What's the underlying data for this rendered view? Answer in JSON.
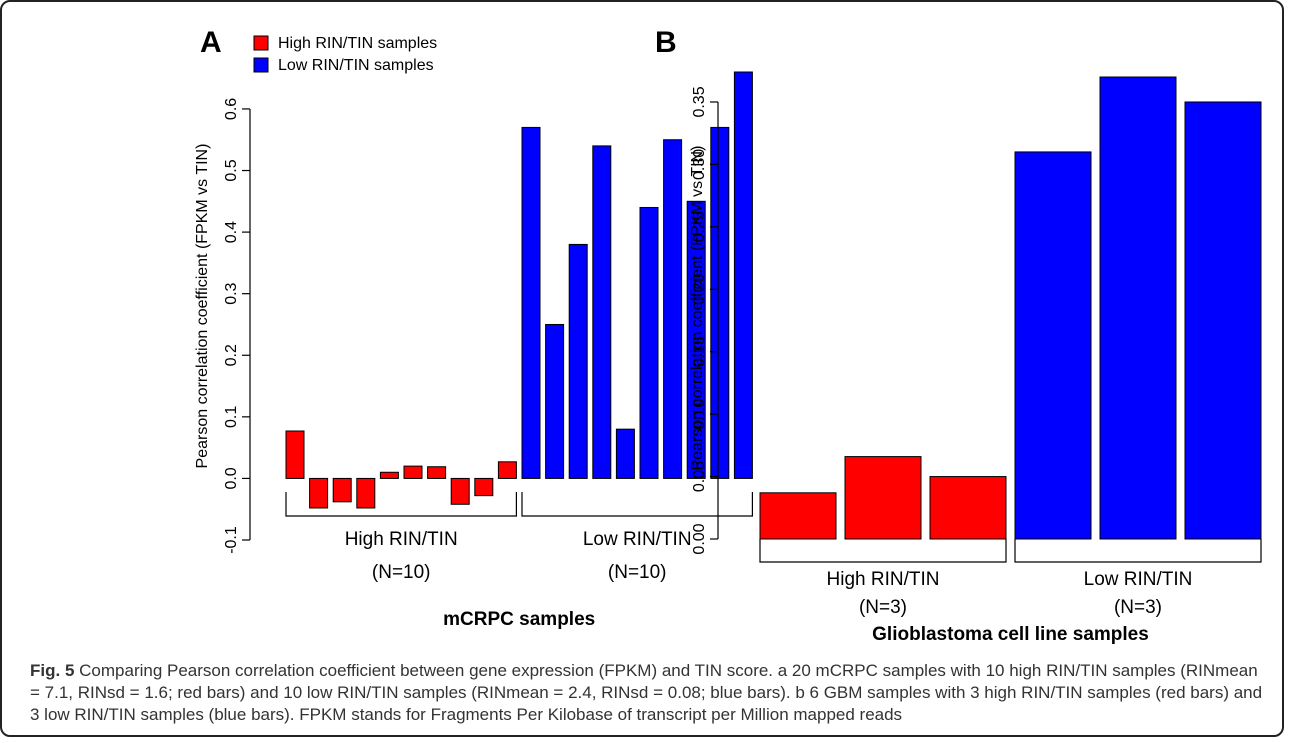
{
  "figure": {
    "caption": {
      "label": "Fig. 5",
      "text": "Comparing Pearson correlation coefficient between gene expression (FPKM) and TIN score. a 20 mCRPC samples with 10 high RIN/TIN samples (RINmean = 7.1, RINsd = 1.6; red bars) and 10 low RIN/TIN samples (RINmean = 2.4, RINsd = 0.08; blue bars). b 6 GBM samples with 3 high RIN/TIN samples (red bars) and 3 low RIN/TIN samples (blue bars). FPKM stands for Fragments Per Kilobase of transcript per Million mapped reads"
    },
    "colors": {
      "high": "#ff0000",
      "low": "#0000ff",
      "stroke": "#000000"
    }
  },
  "chart_data": [
    {
      "type": "bar",
      "panel": "A",
      "title": "",
      "xlabel": "mCRPC samples",
      "ylabel": "Pearson correlation coefficient (FPKM vs TIN)",
      "ylim": [
        -0.1,
        0.66
      ],
      "yticks": [
        -0.1,
        0.0,
        0.1,
        0.2,
        0.3,
        0.4,
        0.5,
        0.6
      ],
      "ytick_labels": [
        "-0.1",
        "0.0",
        "0.1",
        "0.2",
        "0.3",
        "0.4",
        "0.5",
        "0.6"
      ],
      "grid": false,
      "legend": {
        "position": "top-left",
        "entries": [
          "High RIN/TIN samples",
          "Low RIN/TIN samples"
        ]
      },
      "series": [
        {
          "name": "High RIN/TIN samples",
          "values": [
            0.077,
            -0.048,
            -0.038,
            -0.048,
            0.01,
            0.02,
            0.019,
            -0.042,
            -0.028,
            0.027
          ]
        },
        {
          "name": "Low RIN/TIN samples",
          "values": [
            0.57,
            0.25,
            0.38,
            0.54,
            0.08,
            0.44,
            0.55,
            0.45,
            0.57,
            0.66
          ]
        }
      ],
      "groups": [
        {
          "label": "High RIN/TIN",
          "n_label": "(N=10)"
        },
        {
          "label": "Low RIN/TIN",
          "n_label": "(N=10)"
        }
      ]
    },
    {
      "type": "bar",
      "panel": "B",
      "title": "",
      "xlabel": "Glioblastoma cell line samples",
      "ylabel": "Pearson correlation coefficient (FPKM vs TIN)",
      "ylim": [
        0.0,
        0.37
      ],
      "yticks": [
        0.0,
        0.05,
        0.1,
        0.15,
        0.2,
        0.25,
        0.3,
        0.35
      ],
      "ytick_labels": [
        "0.00",
        "0.05",
        "0.10",
        "0.15",
        "0.20",
        "0.25",
        "0.30",
        "0.35"
      ],
      "grid": false,
      "series": [
        {
          "name": "High RIN/TIN samples",
          "values": [
            0.037,
            0.066,
            0.05
          ]
        },
        {
          "name": "Low RIN/TIN samples",
          "values": [
            0.31,
            0.37,
            0.35
          ]
        }
      ],
      "groups": [
        {
          "label": "High RIN/TIN",
          "n_label": "(N=3)"
        },
        {
          "label": "Low RIN/TIN",
          "n_label": "(N=3)"
        }
      ]
    }
  ]
}
